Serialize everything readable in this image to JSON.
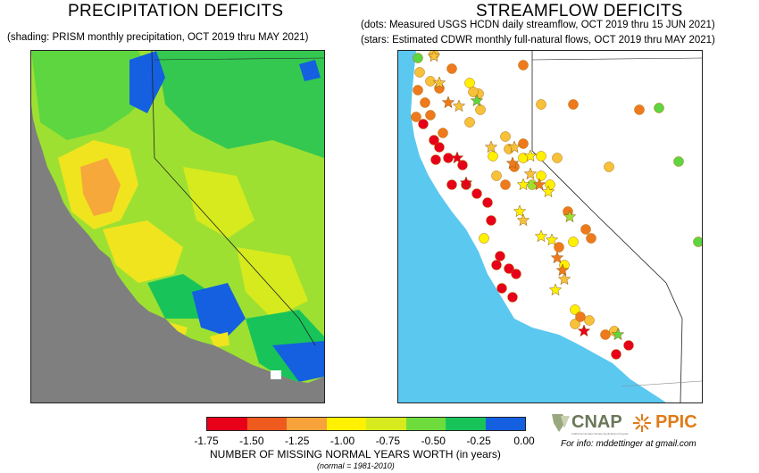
{
  "left": {
    "title": "PRECIPITATION DEFICITS",
    "subtitle": "(shading: PRISM  monthly precipitation, OCT 2019 thru MAY 2021)"
  },
  "right": {
    "title": "STREAMFLOW DEFICITS",
    "subtitle1": "(dots: Measured USGS HCDN daily streamflow, OCT 2019 thru 15 JUN 2021)",
    "subtitle2": "(stars: Estimated CDWR monthly full-natural flows, OCT 2019 thru MAY 2021)"
  },
  "colorbar": {
    "colors": [
      "#e8001a",
      "#ef5a1e",
      "#f7a23a",
      "#fff100",
      "#d6ea1e",
      "#6edc3c",
      "#18c45a",
      "#1460e0"
    ],
    "ticks": [
      "-1.75",
      "-1.50",
      "-1.25",
      "-1.00",
      "-0.75",
      "-0.50",
      "-0.25",
      "0.00"
    ],
    "label": "NUMBER OF MISSING NORMAL YEARS WORTH (in years)",
    "note": "(normal = 1981-2010)"
  },
  "logos": {
    "cnap": "CNAP",
    "cnap_small": "California Nevada Climate Applications Program",
    "ppic": "PPIC"
  },
  "contact": "For info:  mddettinger at gmail.com",
  "map_colors": {
    "ocean": "#5bc8f0",
    "land_masked": "#7f7f7f",
    "land_white": "#ffffff"
  }
}
